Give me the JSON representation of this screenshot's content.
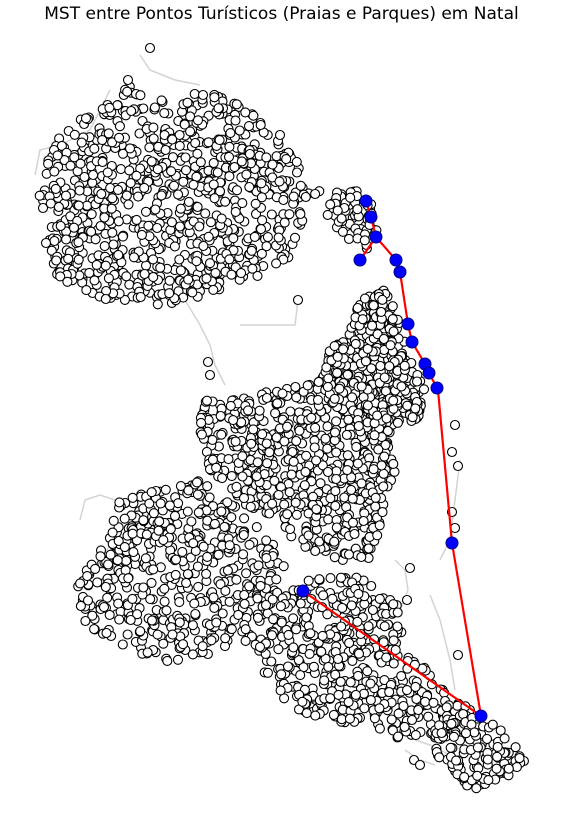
{
  "title": "MST entre Pontos Turísticos (Praias e Parques) em Natal",
  "colors": {
    "background": "#ffffff",
    "road": "#d3d3d3",
    "node_fill": "#ffffff",
    "node_edge": "#000000",
    "poi_fill": "#0000ff",
    "poi_edge": "#000080",
    "mst_edge": "#ff0000"
  },
  "legend": "none",
  "grid": false,
  "axes": "off"
}
